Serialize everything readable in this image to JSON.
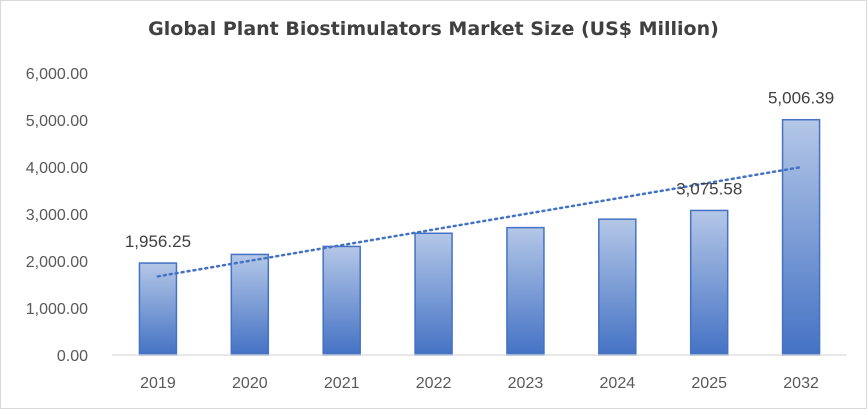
{
  "chart_data": {
    "type": "bar",
    "title": "Global Plant Biostimulators Market Size (US$ Million)",
    "xlabel": "",
    "ylabel": "",
    "categories": [
      "2019",
      "2020",
      "2021",
      "2022",
      "2023",
      "2024",
      "2025",
      "2032"
    ],
    "values": [
      1956.25,
      2140,
      2310,
      2590,
      2710,
      2890,
      3075.58,
      5006.39
    ],
    "data_labels": [
      {
        "category": "2019",
        "text": "1,956.25"
      },
      {
        "category": "2025",
        "text": "3,075.58"
      },
      {
        "category": "2032",
        "text": "5,006.39"
      }
    ],
    "ylim": [
      0,
      6000
    ],
    "y_ticks": [
      0,
      1000,
      2000,
      3000,
      4000,
      5000,
      6000
    ],
    "y_tick_labels": [
      "0.00",
      "1,000.00",
      "2,000.00",
      "3,000.00",
      "4,000.00",
      "5,000.00",
      "6,000.00"
    ],
    "trendline": {
      "type": "linear",
      "style": "dotted"
    },
    "grid": false,
    "legend": "none",
    "colors": {
      "bar_top": "#b4c7e7",
      "bar_bottom": "#4472c4",
      "bar_border": "#4472c4",
      "trendline": "#4472c4",
      "axis": "#d9d9d9"
    }
  }
}
